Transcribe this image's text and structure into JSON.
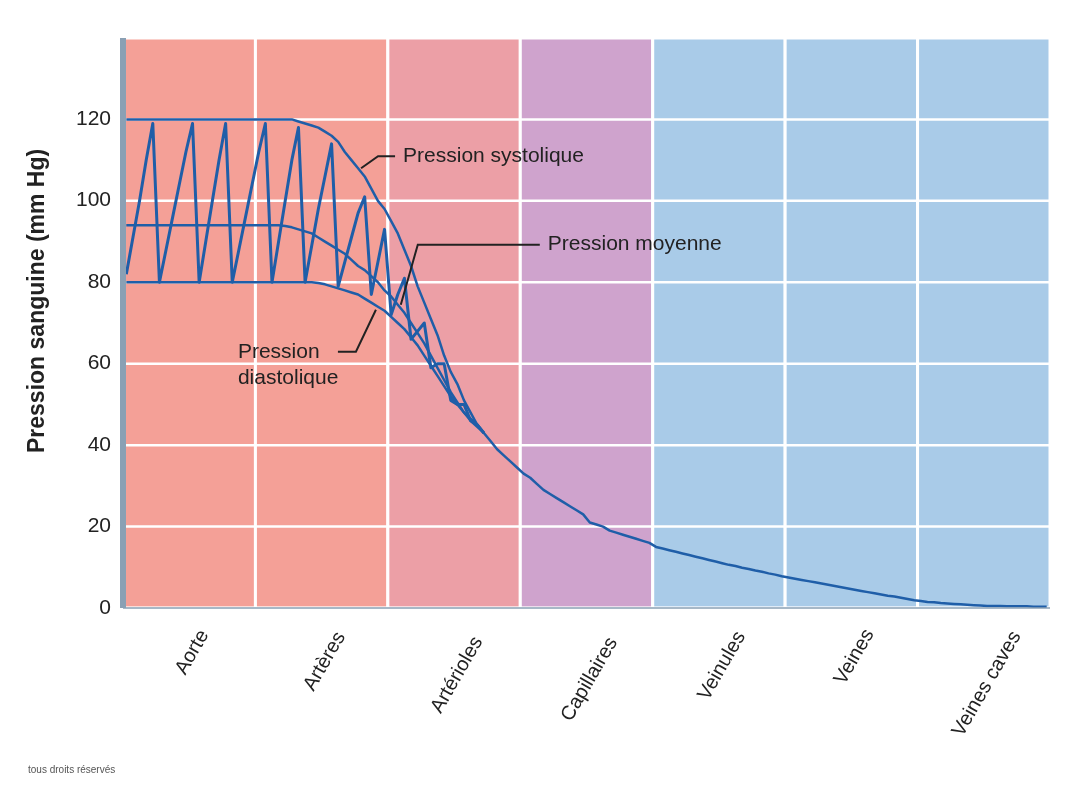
{
  "chart_data": {
    "type": "line",
    "ylabel": "Pression sanguine (mm Hg)",
    "categories": [
      null,
      null,
      null,
      null,
      null,
      null,
      null,
      null,
      null,
      null,
      "Aorte",
      null,
      null,
      null,
      null,
      null,
      null,
      null,
      null,
      null,
      null,
      null,
      null,
      null,
      null,
      null,
      null,
      null,
      null,
      null,
      "Artères",
      null,
      null,
      null,
      null,
      null,
      null,
      null,
      null,
      null,
      null,
      null,
      null,
      null,
      null,
      null,
      null,
      null,
      null,
      null,
      "Artérioles",
      null,
      null,
      null,
      null,
      null,
      null,
      null,
      null,
      null,
      null,
      null,
      null,
      null,
      null,
      null,
      null,
      null,
      null,
      null,
      "Capillaires",
      null,
      null,
      null,
      null,
      null,
      null,
      null,
      null,
      null,
      null,
      null,
      null,
      null,
      null,
      null,
      null,
      null,
      null,
      null,
      "Veinules",
      null,
      null,
      null,
      null,
      null,
      null,
      null,
      null,
      null,
      null,
      null,
      null,
      null,
      null,
      null,
      null,
      null,
      null,
      null,
      "Veines",
      null,
      null,
      null,
      null,
      null,
      null,
      null,
      null,
      null,
      null,
      null,
      null,
      null,
      null,
      null,
      null,
      null,
      null,
      null,
      "Veines caves",
      null,
      null,
      null,
      null,
      null,
      null,
      null,
      null,
      null
    ],
    "ylim": [
      0,
      140
    ],
    "yticks": [
      0,
      20,
      40,
      60,
      80,
      100,
      120
    ],
    "grid": "y",
    "legend": false,
    "marker": "none",
    "line_style": "solid",
    "series": [
      {
        "name": "Pression systolique",
        "color": "#1f5ea8",
        "values": [
          120,
          120,
          120,
          120,
          120,
          120,
          120,
          120,
          120,
          120,
          120,
          120,
          120,
          120,
          120,
          120,
          120,
          120,
          120,
          120,
          120,
          120,
          120,
          120,
          120,
          120,
          119.5,
          119,
          118.5,
          118,
          117,
          116,
          114.5,
          112,
          110,
          108,
          106,
          103,
          100,
          98,
          95,
          92,
          88,
          84,
          79,
          75,
          71,
          67,
          62,
          58,
          55,
          51,
          48,
          45,
          43,
          41,
          39,
          37.5,
          36,
          34.5,
          33,
          32,
          30.5,
          29,
          28,
          27,
          26,
          25,
          24,
          23,
          21,
          20.5,
          20,
          19,
          18.5,
          18,
          17.5,
          17,
          16.5,
          16,
          15,
          14.6,
          14.2,
          13.8,
          13.4,
          13,
          12.6,
          12.2,
          11.8,
          11.4,
          11,
          10.6,
          10.3,
          9.9,
          9.6,
          9.2,
          8.9,
          8.5,
          8.2,
          7.8,
          7.5,
          7.2,
          6.9,
          6.6,
          6.3,
          6,
          5.7,
          5.4,
          5.1,
          4.8,
          4.5,
          4.2,
          3.9,
          3.6,
          3.3,
          3,
          2.8,
          2.5,
          2.2,
          1.9,
          1.7,
          1.5,
          1.4,
          1.2,
          1.1,
          1,
          0.9,
          0.8,
          0.7,
          0.6,
          0.5,
          0.5,
          0.5,
          0.4,
          0.4,
          0.4,
          0.4,
          0.3,
          0.3,
          0.3
        ]
      },
      {
        "name": "Pression moyenne",
        "color": "#1f5ea8",
        "values": [
          94,
          94,
          94,
          94,
          94,
          94,
          94,
          94,
          94,
          94,
          94,
          94,
          94,
          94,
          94,
          94,
          94,
          94,
          94,
          94,
          94,
          94,
          94,
          94,
          93.8,
          93.5,
          93,
          92.5,
          92,
          91,
          90,
          89,
          88,
          87,
          85.5,
          84,
          83,
          81.5,
          80,
          78,
          76.5,
          74.5,
          72.5,
          70,
          67.5,
          65,
          62,
          59,
          56,
          53,
          50.5,
          48,
          46.5,
          45,
          43,
          null,
          null,
          null,
          null,
          null,
          null,
          null,
          null,
          null,
          null,
          null,
          null,
          null,
          null,
          null,
          null,
          null,
          null,
          null,
          null,
          null,
          null,
          null,
          null,
          null,
          null,
          null,
          null,
          null,
          null,
          null,
          null,
          null,
          null,
          null,
          null,
          null,
          null,
          null,
          null,
          null,
          null,
          null,
          null,
          null,
          null,
          null,
          null,
          null,
          null,
          null,
          null,
          null,
          null,
          null,
          null,
          null,
          null,
          null,
          null,
          null,
          null,
          null,
          null,
          null,
          null,
          null,
          null,
          null,
          null,
          null,
          null,
          null,
          null,
          null,
          null,
          null,
          null,
          null,
          null,
          null,
          null,
          null,
          null,
          null
        ]
      },
      {
        "name": "Pression diastolique",
        "color": "#1f5ea8",
        "values": [
          80,
          80,
          80,
          80,
          80,
          80,
          80,
          80,
          80,
          80,
          80,
          80,
          80,
          80,
          80,
          80,
          80,
          80,
          80,
          80,
          80,
          80,
          80,
          80,
          80,
          80,
          80,
          80,
          80,
          79.8,
          79.5,
          79,
          78.5,
          78,
          77.5,
          77,
          76,
          75,
          74,
          73,
          71.5,
          70,
          68.5,
          66.5,
          64.5,
          62,
          59.5,
          57,
          54.5,
          52,
          50,
          48,
          46,
          44.5,
          43,
          null,
          null,
          null,
          null,
          null,
          null,
          null,
          null,
          null,
          null,
          null,
          null,
          null,
          null,
          null,
          null,
          null,
          null,
          null,
          null,
          null,
          null,
          null,
          null,
          null,
          null,
          null,
          null,
          null,
          null,
          null,
          null,
          null,
          null,
          null,
          null,
          null,
          null,
          null,
          null,
          null,
          null,
          null,
          null,
          null,
          null,
          null,
          null,
          null,
          null,
          null,
          null,
          null,
          null,
          null,
          null,
          null,
          null,
          null,
          null,
          null,
          null,
          null,
          null,
          null,
          null,
          null,
          null,
          null,
          null,
          null,
          null,
          null,
          null,
          null,
          null,
          null,
          null,
          null,
          null,
          null,
          null,
          null,
          null,
          null
        ]
      },
      {
        "color": "#1f5ea8",
        "values": [
          82,
          91,
          100,
          110,
          119,
          80,
          88,
          96,
          104,
          112,
          119,
          80,
          90,
          100,
          110,
          119,
          80,
          88,
          96,
          104,
          112,
          119,
          80,
          90,
          100,
          110,
          118,
          80,
          89,
          98,
          106,
          114,
          79,
          85,
          91,
          97,
          101,
          77,
          85,
          93,
          72,
          77,
          81,
          66,
          68,
          70,
          59,
          60,
          60,
          51,
          50,
          50,
          46,
          45,
          43,
          null,
          null,
          null,
          null,
          null,
          null,
          null,
          null,
          null,
          null,
          null,
          null,
          null,
          null,
          null,
          null,
          null,
          null,
          null,
          null,
          null,
          null,
          null,
          null,
          null,
          null,
          null,
          null,
          null,
          null,
          null,
          null,
          null,
          null,
          null,
          null,
          null,
          null,
          null,
          null,
          null,
          null,
          null,
          null,
          null,
          null,
          null,
          null,
          null,
          null,
          null,
          null,
          null,
          null,
          null,
          null,
          null,
          null,
          null,
          null,
          null,
          null,
          null,
          null,
          null,
          null,
          null,
          null,
          null,
          null,
          null,
          null,
          null,
          null,
          null,
          null,
          null,
          null,
          null,
          null,
          null,
          null,
          null,
          null,
          null
        ]
      }
    ],
    "annotations": [
      "tous droits réservés"
    ]
  }
}
